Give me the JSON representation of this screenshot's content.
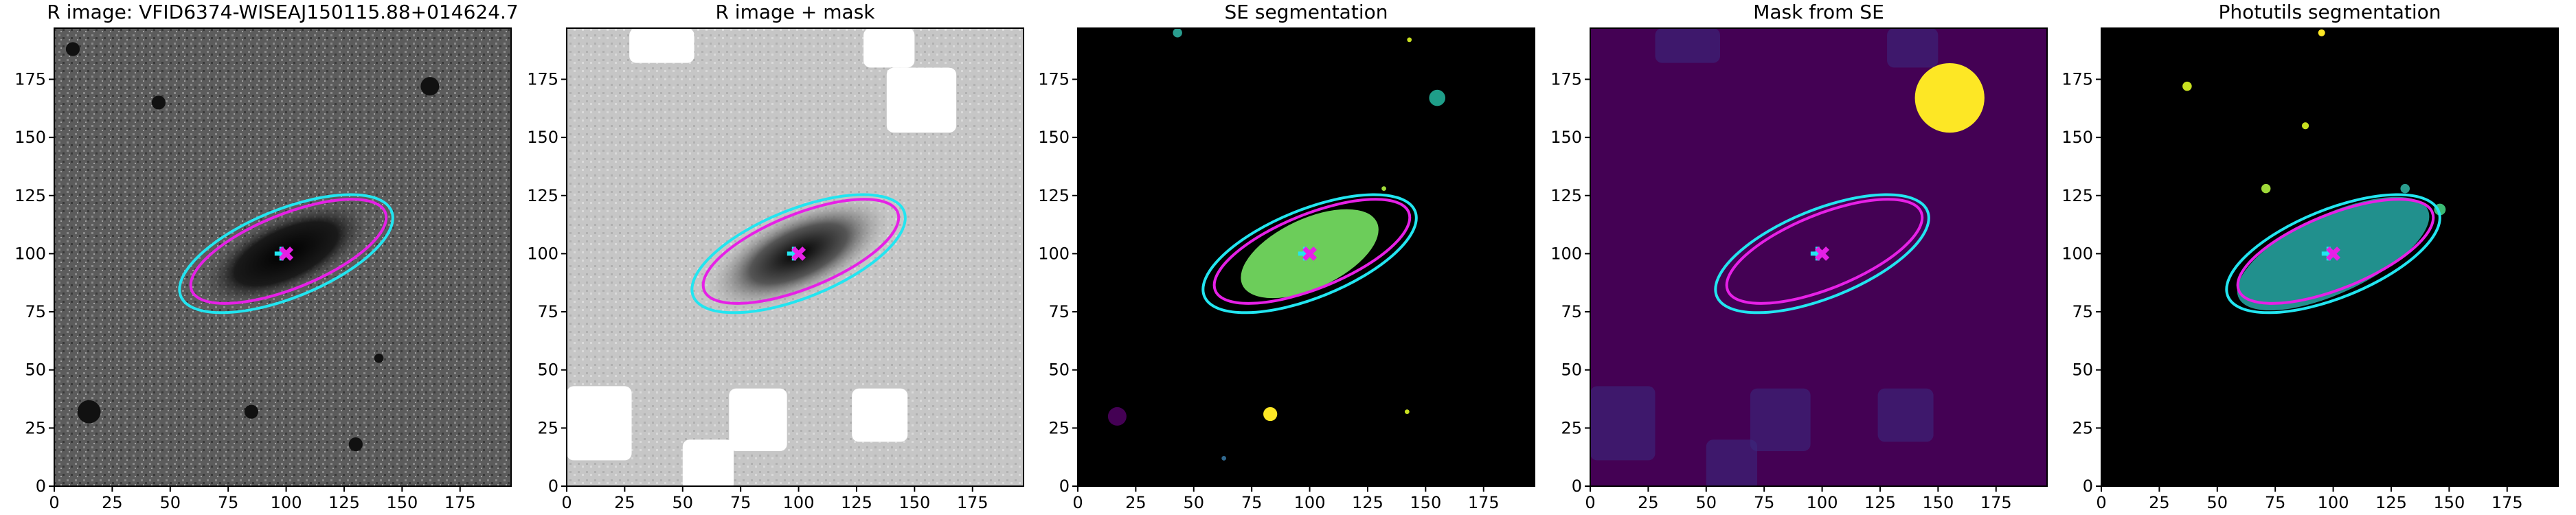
{
  "chart_data": [
    {
      "type": "image",
      "title": "R image: VFID6374-WISEAJ150115.88+014624.7",
      "xlim": [
        0,
        197
      ],
      "ylim": [
        0,
        197
      ],
      "xticks": [
        0,
        25,
        50,
        75,
        100,
        125,
        150,
        175
      ],
      "yticks": [
        0,
        25,
        50,
        75,
        100,
        125,
        150,
        175
      ]
    },
    {
      "type": "image",
      "title": "R image + mask",
      "xlim": [
        0,
        197
      ],
      "ylim": [
        0,
        197
      ],
      "xticks": [
        0,
        25,
        50,
        75,
        100,
        125,
        150,
        175
      ],
      "yticks": [
        0,
        25,
        50,
        75,
        100,
        125,
        150,
        175
      ]
    },
    {
      "type": "image",
      "title": "SE segmentation",
      "xlim": [
        0,
        197
      ],
      "ylim": [
        0,
        197
      ],
      "xticks": [
        0,
        25,
        50,
        75,
        100,
        125,
        150,
        175
      ],
      "yticks": [
        0,
        25,
        50,
        75,
        100,
        125,
        150,
        175
      ]
    },
    {
      "type": "image",
      "title": "Mask from SE",
      "xlim": [
        0,
        197
      ],
      "ylim": [
        0,
        197
      ],
      "xticks": [
        0,
        25,
        50,
        75,
        100,
        125,
        150,
        175
      ],
      "yticks": [
        0,
        25,
        50,
        75,
        100,
        125,
        150,
        175
      ]
    },
    {
      "type": "image",
      "title": "Photutils segmentation",
      "xlim": [
        0,
        197
      ],
      "ylim": [
        0,
        197
      ],
      "xticks": [
        0,
        25,
        50,
        75,
        100,
        125,
        150,
        175
      ],
      "yticks": [
        0,
        25,
        50,
        75,
        100,
        125,
        150,
        175
      ]
    }
  ]
}
